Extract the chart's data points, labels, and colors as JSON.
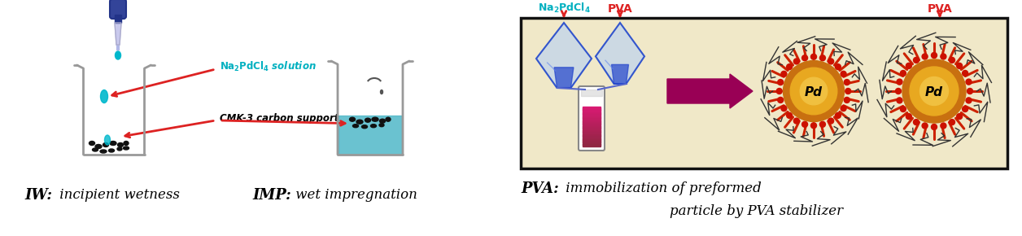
{
  "bg_color": "#ffffff",
  "fig_width": 12.56,
  "fig_height": 2.9,
  "label_iw_bold": "IW:",
  "label_iw_rest": " incipient wetness",
  "label_imp_bold": "IMP:",
  "label_imp_rest": " wet impregnation",
  "label_pva_bold": "PVA:",
  "label_pva_rest1": " immobilization of preformed",
  "label_pva_rest2": "particle by PVA stabilizer",
  "cyan_color": "#00b0c0",
  "red_color": "#dd2222",
  "black_color": "#000000",
  "box_bg": "#f0e8c8",
  "box_edge": "#111111",
  "beaker_color": "#aaaaaa",
  "dropper_color": "#3333aa",
  "teal_fill": "#50b8c8",
  "particle_color": "#111111",
  "drop_color": "#00b8cc",
  "funnel_outer": "#99ccff",
  "funnel_inner": "#2244cc",
  "vial_pink": "#d03080",
  "arrow_magenta": "#990055",
  "pd_gold": "#e8a820",
  "pd_ring": "#c87010",
  "spike_color": "#cc2200",
  "spike2_color": "#333333"
}
